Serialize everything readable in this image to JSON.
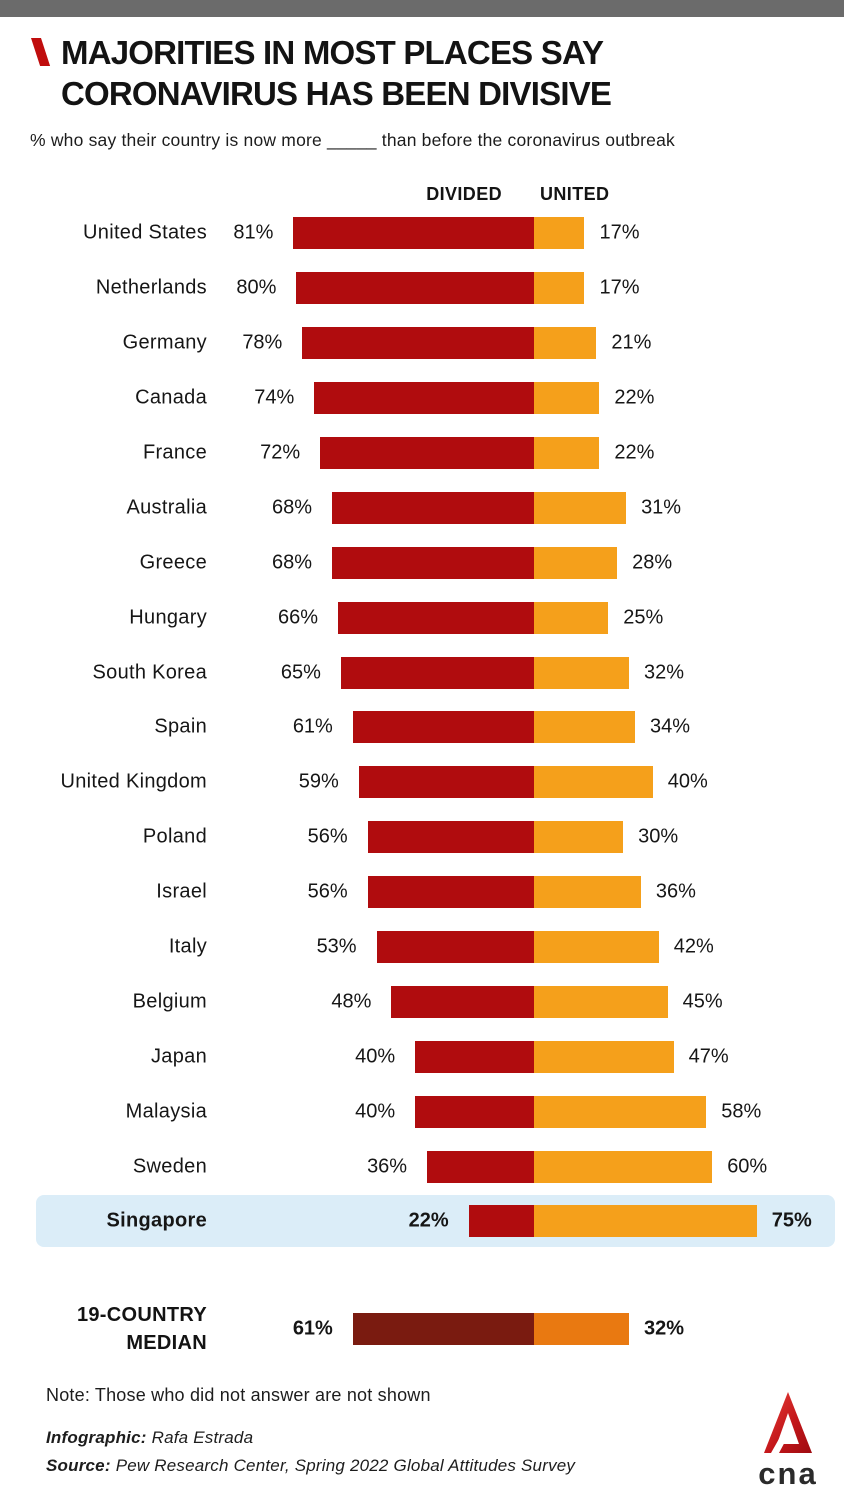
{
  "header": {
    "title_line1": "MAJORITIES IN MOST PLACES SAY",
    "title_line2": "CORONAVIRUS HAS BEEN DIVISIVE",
    "subtitle": "% who say their country is now more _____ than before the coronavirus outbreak"
  },
  "chart_data": {
    "type": "bar",
    "orientation": "horizontal-diverging",
    "unit": "%",
    "column_headers": {
      "left": "DIVIDED",
      "right": "UNITED"
    },
    "series": [
      {
        "name": "Divided",
        "color": "#B00C0E"
      },
      {
        "name": "United",
        "color": "#F5A01B"
      }
    ],
    "xlim": [
      0,
      100
    ],
    "grid": false,
    "highlight_color": "#DBEDF8",
    "rows": [
      {
        "country": "United States",
        "divided": 81,
        "united": 17,
        "highlighted": false
      },
      {
        "country": "Netherlands",
        "divided": 80,
        "united": 17,
        "highlighted": false
      },
      {
        "country": "Germany",
        "divided": 78,
        "united": 21,
        "highlighted": false
      },
      {
        "country": "Canada",
        "divided": 74,
        "united": 22,
        "highlighted": false
      },
      {
        "country": "France",
        "divided": 72,
        "united": 22,
        "highlighted": false
      },
      {
        "country": "Australia",
        "divided": 68,
        "united": 31,
        "highlighted": false
      },
      {
        "country": "Greece",
        "divided": 68,
        "united": 28,
        "highlighted": false
      },
      {
        "country": "Hungary",
        "divided": 66,
        "united": 25,
        "highlighted": false
      },
      {
        "country": "South Korea",
        "divided": 65,
        "united": 32,
        "highlighted": false
      },
      {
        "country": "Spain",
        "divided": 61,
        "united": 34,
        "highlighted": false
      },
      {
        "country": "United Kingdom",
        "divided": 59,
        "united": 40,
        "highlighted": false
      },
      {
        "country": "Poland",
        "divided": 56,
        "united": 30,
        "highlighted": false
      },
      {
        "country": "Israel",
        "divided": 56,
        "united": 36,
        "highlighted": false
      },
      {
        "country": "Italy",
        "divided": 53,
        "united": 42,
        "highlighted": false
      },
      {
        "country": "Belgium",
        "divided": 48,
        "united": 45,
        "highlighted": false
      },
      {
        "country": "Japan",
        "divided": 40,
        "united": 47,
        "highlighted": false
      },
      {
        "country": "Malaysia",
        "divided": 40,
        "united": 58,
        "highlighted": false
      },
      {
        "country": "Sweden",
        "divided": 36,
        "united": 60,
        "highlighted": false
      },
      {
        "country": "Singapore",
        "divided": 22,
        "united": 75,
        "highlighted": true
      }
    ],
    "median": {
      "label_line1": "19-COUNTRY",
      "label_line2": "MEDIAN",
      "divided": 61,
      "united": 32,
      "divided_color": "#7A1B10",
      "united_color": "#E97911"
    }
  },
  "footer": {
    "note": "Note: Those who did not answer are not shown",
    "infographic_label": "Infographic:",
    "infographic_value": "Rafa Estrada",
    "source_label": "Source:",
    "source_value": "Pew Research Center, Spring 2022 Global Attitudes Survey"
  },
  "logo": {
    "text": "cna"
  }
}
